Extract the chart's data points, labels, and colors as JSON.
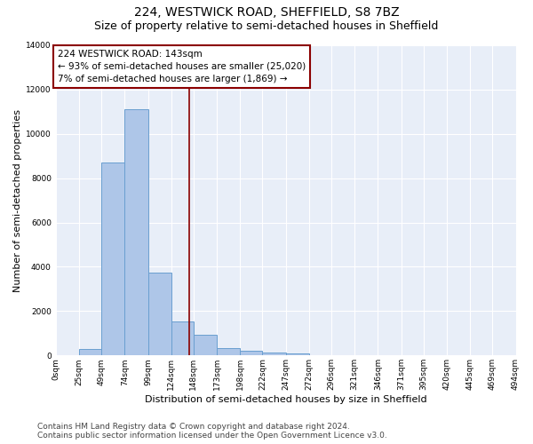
{
  "title1": "224, WESTWICK ROAD, SHEFFIELD, S8 7BZ",
  "title2": "Size of property relative to semi-detached houses in Sheffield",
  "xlabel": "Distribution of semi-detached houses by size in Sheffield",
  "ylabel": "Number of semi-detached properties",
  "footer1": "Contains HM Land Registry data © Crown copyright and database right 2024.",
  "footer2": "Contains public sector information licensed under the Open Government Licence v3.0.",
  "annotation_line1": "224 WESTWICK ROAD: 143sqm",
  "annotation_line2": "← 93% of semi-detached houses are smaller (25,020)",
  "annotation_line3": "7% of semi-detached houses are larger (1,869) →",
  "bar_left_edges": [
    0,
    25,
    49,
    74,
    99,
    124,
    148,
    173,
    198,
    222,
    247,
    272,
    296,
    321,
    346,
    371,
    395,
    420,
    445,
    469
  ],
  "bar_widths": [
    25,
    24,
    25,
    25,
    25,
    24,
    25,
    25,
    24,
    25,
    25,
    24,
    25,
    25,
    25,
    24,
    25,
    25,
    24,
    25
  ],
  "bar_heights": [
    0,
    300,
    8700,
    11100,
    3750,
    1550,
    950,
    350,
    200,
    130,
    80,
    0,
    0,
    0,
    0,
    0,
    0,
    0,
    0,
    0
  ],
  "bar_color": "#aec6e8",
  "bar_edge_color": "#6a9fd0",
  "vline_color": "#8b0000",
  "vline_x": 143,
  "box_edge_color": "#8b0000",
  "ylim": [
    0,
    14000
  ],
  "xlim": [
    0,
    494
  ],
  "tick_labels": [
    "0sqm",
    "25sqm",
    "49sqm",
    "74sqm",
    "99sqm",
    "124sqm",
    "148sqm",
    "173sqm",
    "198sqm",
    "222sqm",
    "247sqm",
    "272sqm",
    "296sqm",
    "321sqm",
    "346sqm",
    "371sqm",
    "395sqm",
    "420sqm",
    "445sqm",
    "469sqm",
    "494sqm"
  ],
  "tick_positions": [
    0,
    25,
    49,
    74,
    99,
    124,
    148,
    173,
    198,
    222,
    247,
    272,
    296,
    321,
    346,
    371,
    395,
    420,
    445,
    469,
    494
  ],
  "yticks": [
    0,
    2000,
    4000,
    6000,
    8000,
    10000,
    12000,
    14000
  ],
  "bg_color": "#e8eef8",
  "title1_fontsize": 10,
  "title2_fontsize": 9,
  "axis_label_fontsize": 8,
  "tick_fontsize": 6.5,
  "annotation_fontsize": 7.5,
  "footer_fontsize": 6.5
}
